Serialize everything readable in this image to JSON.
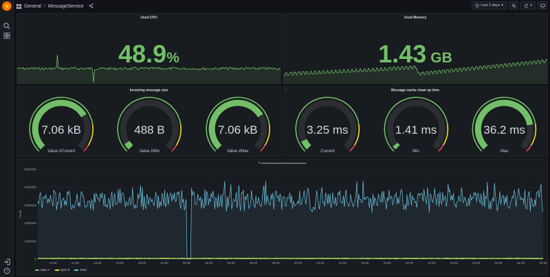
{
  "app": {
    "breadcrumb_root": "General",
    "breadcrumb_sep": "/",
    "dashboard_title": "MessageService"
  },
  "toolbar": {
    "time_range": "Last 2 days"
  },
  "panels": {
    "cpu": {
      "title": "Used CPU",
      "value": "48.9",
      "unit": "%"
    },
    "memory": {
      "title": "Used Memory",
      "value": "1.43",
      "unit": "GB"
    },
    "msg_size": {
      "title": "Incoming message size",
      "gauges": [
        {
          "value": "7.06 kB",
          "label": "Value #Current",
          "fraction": 0.72
        },
        {
          "value": "488 B",
          "label": "Value #Min",
          "fraction": 0.05
        },
        {
          "value": "7.06 kB",
          "label": "Value #Max",
          "fraction": 0.72
        }
      ]
    },
    "cache": {
      "title": "Message cache clean up time",
      "gauges": [
        {
          "value": "3.25 ms",
          "label": "Current",
          "fraction": 0.07
        },
        {
          "value": "1.41 ms",
          "label": "Min",
          "fraction": 0.03
        },
        {
          "value": "36.2 ms",
          "label": "Max",
          "fraction": 0.8
        }
      ]
    },
    "timeseries": {
      "title": "Throughput / message by type",
      "ylabel": "Count"
    }
  },
  "chart_data": {
    "type": "line",
    "ylabel": "Count",
    "ylim": [
      0,
      5000000
    ],
    "y_ticks": [
      "5000000",
      "4000000",
      "3000000",
      "2000000",
      "1000000",
      "0"
    ],
    "x_ticks": [
      "12:00",
      "14:00",
      "16:00",
      "18:00",
      "20:00",
      "22:00",
      "00:00",
      "02:00",
      "04:00",
      "06:00",
      "08:00",
      "10:00",
      "12:00",
      "14:00",
      "16:00",
      "18:00",
      "20:00",
      "22:00",
      "00:00",
      "02:00",
      "04:00",
      "06:00",
      "08:00"
    ],
    "legend_position": "bottom-left",
    "grid": true,
    "series": [
      {
        "name": "topic A",
        "color": "#73bf69",
        "baseline": 20000
      },
      {
        "name": "topic B",
        "color": "#fade2a",
        "baseline": 40000
      },
      {
        "name": "Total",
        "color": "#6ec6e6",
        "baseline": 3300000,
        "spread": 600000,
        "dip_at_tick": 6.1,
        "dip_value": 0
      }
    ]
  },
  "colors": {
    "green": "#73bf69",
    "yellow": "#fade2a",
    "red": "#f2495c",
    "track": "#2c2e34",
    "cyan": "#6ec6e6"
  }
}
